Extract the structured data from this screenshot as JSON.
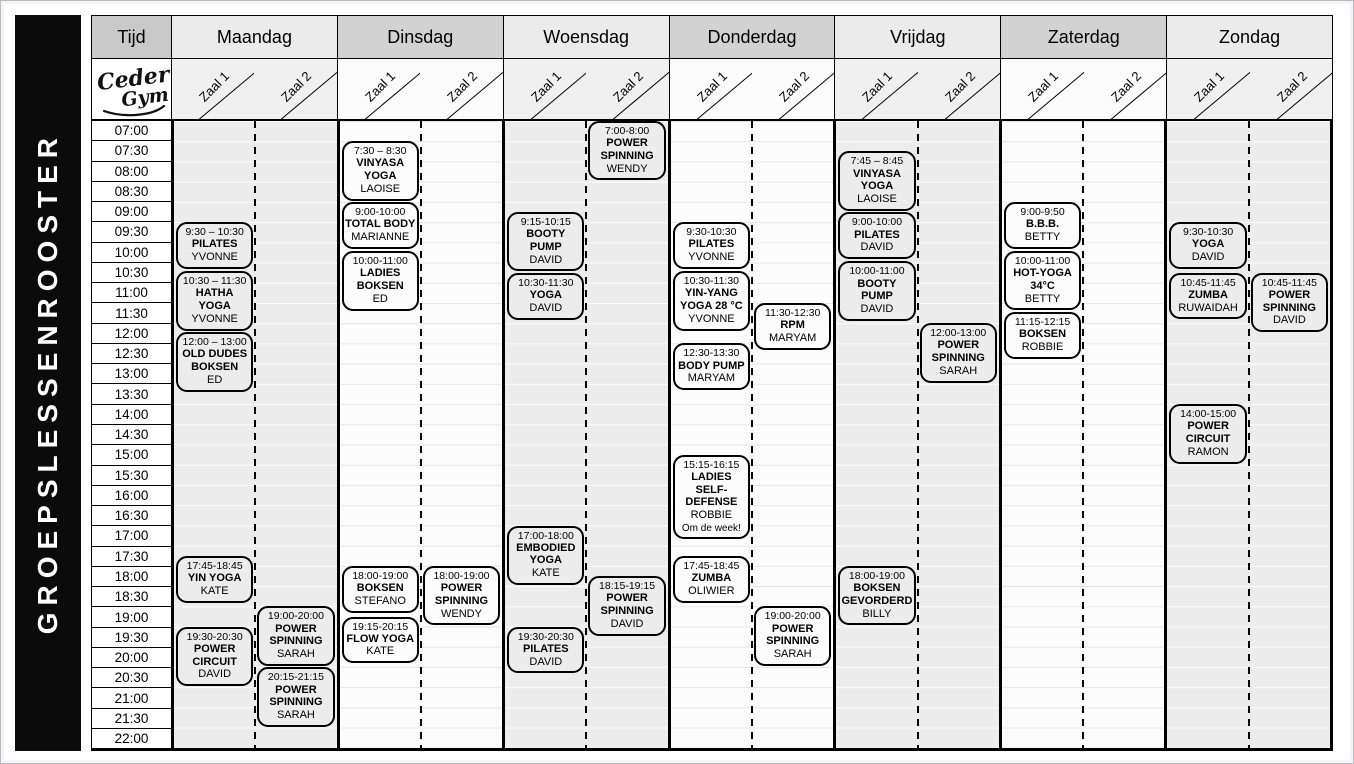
{
  "sidebar": {
    "title": "GROEPSLESSENROOSTER"
  },
  "logo": {
    "line1": "Ceder",
    "line2": "Gym"
  },
  "header": {
    "time_label": "Tijd"
  },
  "rooms": [
    "Zaal 1",
    "Zaal 2"
  ],
  "times": [
    "07:00",
    "07:30",
    "08:00",
    "08:30",
    "09:00",
    "09:30",
    "10:00",
    "10:30",
    "11:00",
    "11:30",
    "12:00",
    "12:30",
    "13:00",
    "13:30",
    "14:00",
    "14:30",
    "15:00",
    "15:30",
    "16:00",
    "16:30",
    "17:00",
    "17:30",
    "18:00",
    "18:30",
    "19:00",
    "19:30",
    "20:00",
    "20:30",
    "21:00",
    "21:30",
    "22:00"
  ],
  "colors": {
    "banner": "#0b0b0b",
    "header_dark": "#d2d2d2",
    "header_light": "#ebebeb",
    "gray_day": "#ececec",
    "white_day": "#fcfcfc",
    "ink": "#000000"
  },
  "days": [
    {
      "name": "Maandag",
      "rooms": [
        {
          "name": "Zaal 1",
          "classes": [
            {
              "time": "9:30 – 10:30",
              "title": "PILATES",
              "trainer": "YVONNE"
            },
            {
              "time": "10:30 – 11:30",
              "title": "HATHA YOGA",
              "trainer": "YVONNE"
            },
            {
              "time": "12:00 – 13:00",
              "title": "OLD DUDES BOKSEN",
              "trainer": "ED"
            },
            {
              "time": "17:45-18:45",
              "title": "YIN YOGA",
              "trainer": "KATE"
            },
            {
              "time": "19:30-20:30",
              "title": "POWER CIRCUIT",
              "trainer": "DAVID"
            }
          ]
        },
        {
          "name": "Zaal 2",
          "classes": [
            {
              "time": "19:00-20:00",
              "title": "POWER SPINNING",
              "trainer": "SARAH"
            },
            {
              "time": "20:15-21:15",
              "title": "POWER SPINNING",
              "trainer": "SARAH"
            }
          ]
        }
      ]
    },
    {
      "name": "Dinsdag",
      "rooms": [
        {
          "name": "Zaal 1",
          "classes": [
            {
              "time": "7:30 – 8:30",
              "title": "VINYASA YOGA",
              "trainer": "LAOISE"
            },
            {
              "time": "9:00-10:00",
              "title": "TOTAL BODY",
              "trainer": "MARIANNE"
            },
            {
              "time": "10:00-11:00",
              "title": "LADIES BOKSEN",
              "trainer": "ED"
            },
            {
              "time": "18:00-19:00",
              "title": "BOKSEN",
              "trainer": "STEFANO"
            },
            {
              "time": "19:15-20:15",
              "title": "FLOW YOGA",
              "trainer": "KATE"
            }
          ]
        },
        {
          "name": "Zaal 2",
          "classes": [
            {
              "time": "18:00-19:00",
              "title": "POWER SPINNING",
              "trainer": "WENDY"
            }
          ]
        }
      ]
    },
    {
      "name": "Woensdag",
      "rooms": [
        {
          "name": "Zaal 1",
          "classes": [
            {
              "time": "9:15-10:15",
              "title": "BOOTY PUMP",
              "trainer": "DAVID"
            },
            {
              "time": "10:30-11:30",
              "title": "YOGA",
              "trainer": "DAVID"
            },
            {
              "time": "17:00-18:00",
              "title": "EMBODIED YOGA",
              "trainer": "KATE"
            },
            {
              "time": "19:30-20:30",
              "title": "PILATES",
              "trainer": "DAVID"
            }
          ]
        },
        {
          "name": "Zaal 2",
          "classes": [
            {
              "time": "7:00-8:00",
              "title": "POWER SPINNING",
              "trainer": "WENDY"
            },
            {
              "time": "18:15-19:15",
              "title": "POWER SPINNING",
              "trainer": "DAVID"
            }
          ]
        }
      ]
    },
    {
      "name": "Donderdag",
      "rooms": [
        {
          "name": "Zaal 1",
          "classes": [
            {
              "time": "9:30-10:30",
              "title": "PILATES",
              "trainer": "YVONNE"
            },
            {
              "time": "10:30-11:30",
              "title": "YIN-YANG YOGA 28 °C",
              "trainer": "YVONNE"
            },
            {
              "time": "12:30-13:30",
              "title": "BODY PUMP",
              "trainer": "MARYAM"
            },
            {
              "time": "15:15-16:15",
              "title": "LADIES SELF-DEFENSE",
              "trainer": "ROBBIE",
              "note": "Om de week!"
            },
            {
              "time": "17:45-18:45",
              "title": "ZUMBA",
              "trainer": "OLIWIER"
            }
          ]
        },
        {
          "name": "Zaal 2",
          "classes": [
            {
              "time": "11:30-12:30",
              "title": "RPM",
              "trainer": "MARYAM"
            },
            {
              "time": "19:00-20:00",
              "title": "POWER SPINNING",
              "trainer": "SARAH"
            }
          ]
        }
      ]
    },
    {
      "name": "Vrijdag",
      "rooms": [
        {
          "name": "Zaal 1",
          "classes": [
            {
              "time": "7:45 – 8:45",
              "title": "VINYASA YOGA",
              "trainer": "LAOISE"
            },
            {
              "time": "9:00-10:00",
              "title": "PILATES",
              "trainer": "DAVID"
            },
            {
              "time": "10:00-11:00",
              "title": "BOOTY PUMP",
              "trainer": "DAVID"
            },
            {
              "time": "18:00-19:00",
              "title": "BOKSEN GEVORDERD",
              "trainer": "BILLY"
            }
          ]
        },
        {
          "name": "Zaal 2",
          "classes": [
            {
              "time": "12:00-13:00",
              "title": "POWER SPINNING",
              "trainer": "SARAH"
            }
          ]
        }
      ]
    },
    {
      "name": "Zaterdag",
      "rooms": [
        {
          "name": "Zaal 1",
          "classes": [
            {
              "time": "9:00-9:50",
              "title": "B.B.B.",
              "trainer": "BETTY"
            },
            {
              "time": "10:00-11:00",
              "title": "HOT-YOGA 34°C",
              "trainer": "BETTY"
            },
            {
              "time": "11:15-12:15",
              "title": "BOKSEN",
              "trainer": "ROBBIE"
            }
          ]
        },
        {
          "name": "Zaal 2",
          "classes": []
        }
      ]
    },
    {
      "name": "Zondag",
      "rooms": [
        {
          "name": "Zaal 1",
          "classes": [
            {
              "time": "9:30-10:30",
              "title": "YOGA",
              "trainer": "DAVID"
            },
            {
              "time": "10:45-11:45",
              "title": "ZUMBA",
              "trainer": "RUWAIDAH"
            },
            {
              "time": "14:00-15:00",
              "title": "POWER CIRCUIT",
              "trainer": "RAMON"
            }
          ]
        },
        {
          "name": "Zaal 2",
          "classes": [
            {
              "time": "10:45-11:45",
              "title": "POWER SPINNING",
              "trainer": "DAVID"
            }
          ]
        }
      ]
    }
  ]
}
